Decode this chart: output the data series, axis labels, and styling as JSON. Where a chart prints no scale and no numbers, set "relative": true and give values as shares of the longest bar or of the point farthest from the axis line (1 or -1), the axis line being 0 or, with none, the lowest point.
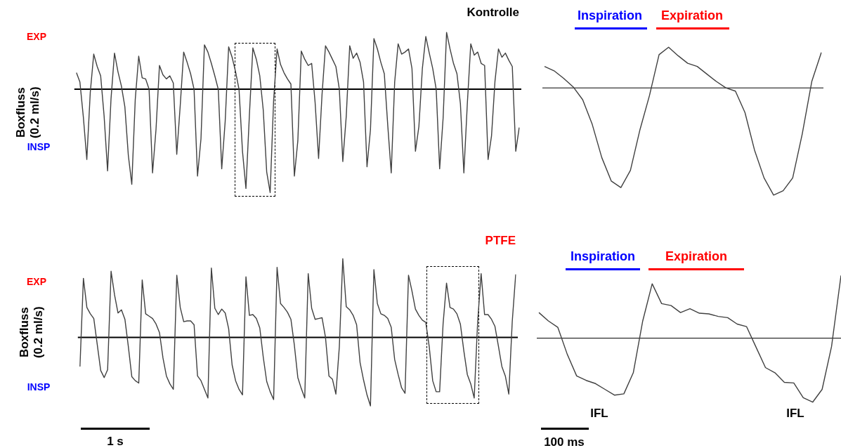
{
  "chart_data": [
    {
      "type": "line",
      "title": "Kontrolle",
      "ylabel": "Boxfluss\n(0.2 ml/s)",
      "relative": true,
      "tick_labels": false,
      "marker": "none",
      "annotations": [
        "EXP",
        "INSP"
      ],
      "categories": [
        null,
        null,
        null,
        null,
        null,
        null,
        null,
        null,
        null,
        null,
        null,
        null,
        null,
        null,
        null,
        null,
        null,
        null,
        null,
        null,
        null,
        null,
        null,
        null,
        null,
        null,
        null,
        null,
        null,
        null,
        null,
        null,
        null,
        null,
        null,
        null,
        null,
        null,
        null,
        null,
        null,
        null,
        null,
        null,
        null,
        null,
        null,
        null,
        null,
        null,
        null,
        null,
        null,
        null,
        null,
        null,
        null,
        null,
        null,
        null,
        null,
        null,
        null,
        null,
        null,
        null,
        null,
        null,
        null,
        null,
        null,
        null,
        null,
        null,
        null,
        null,
        null,
        null,
        null,
        null,
        null,
        null,
        null,
        null,
        null,
        null,
        null,
        null,
        null,
        null,
        null,
        null,
        null,
        null,
        null,
        null,
        null,
        null,
        null,
        null,
        null,
        null,
        null,
        null,
        null,
        null,
        null,
        null,
        null,
        null,
        null,
        null,
        null,
        null,
        null,
        null,
        null,
        null,
        null,
        null,
        null,
        null,
        null,
        null,
        null,
        null,
        null,
        null,
        null
      ],
      "series": [
        {
          "color": "#404040",
          "values": [
            0.16,
            0.07,
            -0.27,
            -0.68,
            -0.03,
            0.34,
            0.22,
            0.13,
            -0.26,
            -0.79,
            -0.09,
            0.35,
            0.17,
            0.03,
            -0.17,
            -0.64,
            -0.92,
            -0.1,
            0.32,
            0.11,
            0.1,
            0,
            -0.81,
            -0.39,
            0.23,
            0.14,
            0.1,
            0.13,
            0.06,
            -0.63,
            -0.16,
            0.36,
            0.26,
            0.15,
            0,
            -0.84,
            -0.48,
            0.43,
            0.36,
            0.25,
            0.13,
            0,
            -0.77,
            -0.31,
            0.41,
            0.31,
            0.17,
            0,
            -0.6,
            -0.96,
            -0.25,
            0.4,
            0.29,
            0.13,
            -0.2,
            -0.8,
            -1,
            -0.11,
            0.39,
            0.24,
            0.16,
            0.1,
            0.05,
            -0.84,
            -0.5,
            0.37,
            0.29,
            0.23,
            0.25,
            -0.13,
            -0.67,
            -0.05,
            0.42,
            0.36,
            0.29,
            0.22,
            0,
            -0.7,
            -0.26,
            0.42,
            0.3,
            0.35,
            0.26,
            0.07,
            -0.75,
            -0.39,
            0.49,
            0.39,
            0.26,
            0.15,
            -0.35,
            -0.81,
            0.07,
            0.44,
            0.34,
            0.36,
            0.39,
            0.2,
            -0.6,
            -0.36,
            0.2,
            0.51,
            0.35,
            0.2,
            0,
            -0.77,
            -0.28,
            0.55,
            0.39,
            0.25,
            0.15,
            -0.14,
            -0.81,
            -0.14,
            0.44,
            0.33,
            0.36,
            0.25,
            0.23,
            -0.68,
            -0.45,
            0.08,
            0.39,
            0.31,
            0.35,
            0.28,
            0.22,
            -0.6,
            -0.37
          ]
        }
      ]
    },
    {
      "type": "line",
      "relative": true,
      "tick_labels": false,
      "marker": "none",
      "annotations": [
        "Inspiration",
        "Expiration"
      ],
      "categories": [
        null,
        null,
        null,
        null,
        null,
        null,
        null,
        null,
        null,
        null,
        null,
        null,
        null,
        null,
        null,
        null,
        null,
        null,
        null,
        null,
        null,
        null,
        null,
        null,
        null,
        null,
        null,
        null,
        null,
        null
      ],
      "series": [
        {
          "color": "#404040",
          "values": [
            0.2,
            0.16,
            0.09,
            0.01,
            -0.11,
            -0.34,
            -0.65,
            -0.87,
            -0.93,
            -0.77,
            -0.39,
            -0.07,
            0.31,
            0.38,
            0.3,
            0.23,
            0.2,
            0.13,
            0.06,
            0,
            -0.03,
            -0.23,
            -0.58,
            -0.84,
            -1,
            -0.96,
            -0.84,
            -0.43,
            0.06,
            0.33
          ]
        }
      ]
    },
    {
      "type": "line",
      "title": "PTFE",
      "ylabel": "Boxfluss\n(0.2 ml/s)",
      "relative": true,
      "tick_labels": false,
      "marker": "none",
      "annotations": [
        "EXP",
        "INSP",
        "1 s"
      ],
      "categories": [
        null,
        null,
        null,
        null,
        null,
        null,
        null,
        null,
        null,
        null,
        null,
        null,
        null,
        null,
        null,
        null,
        null,
        null,
        null,
        null,
        null,
        null,
        null,
        null,
        null,
        null,
        null,
        null,
        null,
        null,
        null,
        null,
        null,
        null,
        null,
        null,
        null,
        null,
        null,
        null,
        null,
        null,
        null,
        null,
        null,
        null,
        null,
        null,
        null,
        null,
        null,
        null,
        null,
        null,
        null,
        null,
        null,
        null,
        null,
        null,
        null,
        null,
        null,
        null,
        null,
        null,
        null,
        null,
        null,
        null,
        null,
        null,
        null,
        null,
        null,
        null,
        null,
        null,
        null,
        null,
        null,
        null,
        null,
        null,
        null,
        null,
        null,
        null,
        null,
        null,
        null,
        null,
        null,
        null,
        null,
        null,
        null,
        null,
        null,
        null,
        null,
        null,
        null,
        null,
        null,
        null,
        null,
        null,
        null,
        null,
        null,
        null,
        null,
        null,
        null,
        null,
        null,
        null,
        null,
        null,
        null,
        null,
        null,
        null,
        null,
        null,
        null
      ],
      "series": [
        {
          "color": "#404040",
          "values": [
            -0.37,
            0.75,
            0.38,
            0.3,
            0.24,
            -0.09,
            -0.42,
            -0.51,
            -0.41,
            0.84,
            0.54,
            0.31,
            0.35,
            0.23,
            -0.12,
            -0.5,
            -0.55,
            -0.58,
            0.73,
            0.3,
            0.27,
            0.24,
            0.17,
            0.06,
            -0.26,
            -0.49,
            -0.59,
            -0.66,
            0.79,
            0.38,
            0.2,
            0.21,
            0.21,
            0.16,
            -0.49,
            -0.55,
            -0.66,
            -0.77,
            0.88,
            0.37,
            0.29,
            0.36,
            0.31,
            0.11,
            -0.35,
            -0.55,
            -0.66,
            -0.73,
            0.77,
            0.28,
            0.29,
            0.24,
            0.12,
            -0.25,
            -0.56,
            -0.69,
            -0.79,
            0.89,
            0.43,
            0.38,
            0.32,
            0.23,
            -0.1,
            -0.51,
            -0.65,
            -0.77,
            0.81,
            0.37,
            0.23,
            0.24,
            0.25,
            0,
            -0.49,
            -0.53,
            -0.72,
            -0.12,
            1,
            0.39,
            0.35,
            0.28,
            0.16,
            -0.32,
            -0.54,
            -0.73,
            -0.87,
            0.86,
            0.43,
            0.3,
            0.28,
            0.24,
            0.13,
            -0.28,
            -0.47,
            -0.64,
            -0.71,
            0.79,
            0.59,
            0.36,
            0.28,
            0.22,
            0.19,
            -0.12,
            -0.55,
            -0.69,
            -0.69,
            0.17,
            0.69,
            0.38,
            0.36,
            0.3,
            0.17,
            -0.17,
            -0.47,
            -0.59,
            -0.77,
            0.2,
            0.81,
            0.29,
            0.29,
            0.23,
            0.14,
            -0.11,
            -0.37,
            -0.49,
            -0.72,
            0.2,
            0.8
          ]
        }
      ]
    },
    {
      "type": "line",
      "relative": true,
      "tick_labels": false,
      "marker": "none",
      "annotations": [
        "Inspiration",
        "Expiration",
        "IFL",
        "IFL",
        "100 ms"
      ],
      "categories": [
        null,
        null,
        null,
        null,
        null,
        null,
        null,
        null,
        null,
        null,
        null,
        null,
        null,
        null,
        null,
        null,
        null,
        null,
        null,
        null,
        null,
        null,
        null,
        null,
        null,
        null,
        null,
        null,
        null,
        null,
        null,
        null,
        null
      ],
      "series": [
        {
          "color": "#404040",
          "values": [
            0.4,
            0.27,
            0.17,
            -0.25,
            -0.59,
            -0.66,
            -0.71,
            -0.8,
            -0.89,
            -0.87,
            -0.54,
            0.27,
            0.85,
            0.54,
            0.51,
            0.4,
            0.46,
            0.39,
            0.38,
            0.34,
            0.32,
            0.22,
            0.18,
            -0.14,
            -0.46,
            -0.54,
            -0.69,
            -0.7,
            -0.93,
            -1,
            -0.8,
            -0.13,
            0.98
          ]
        }
      ]
    }
  ]
}
